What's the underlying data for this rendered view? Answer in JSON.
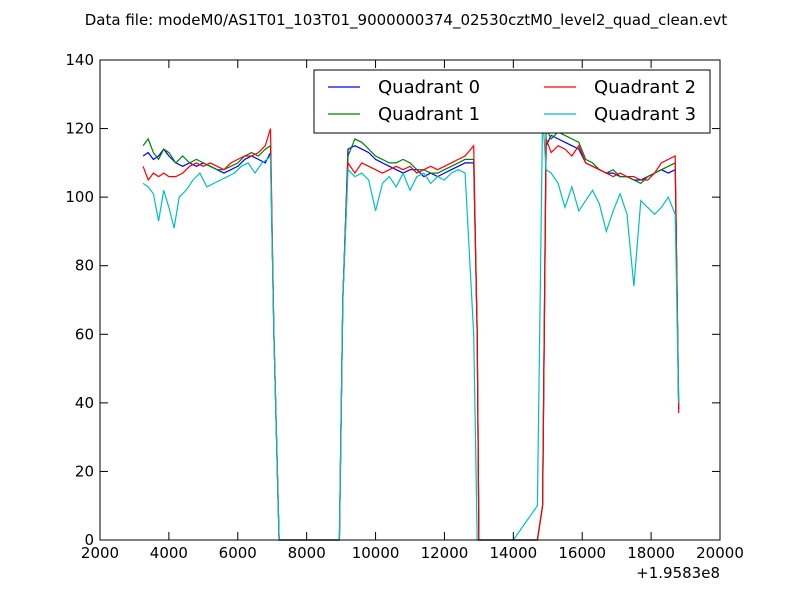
{
  "chart_data": {
    "type": "line",
    "title": "Data file: modeM0/AS1T01_103T01_9000000374_02530cztM0_level2_quad_clean.evt",
    "xlabel": "",
    "ylabel": "",
    "xlim": [
      2000,
      20000
    ],
    "ylim": [
      0,
      140
    ],
    "x_offset_label": "+1.9583e8",
    "xticks": [
      "2000",
      "4000",
      "6000",
      "8000",
      "10000",
      "12000",
      "14000",
      "16000",
      "18000",
      "20000"
    ],
    "yticks": [
      "0",
      "20",
      "40",
      "60",
      "80",
      "100",
      "120",
      "140"
    ],
    "grid": false,
    "legend_placement": "top-right",
    "series": [
      {
        "name": "Quadrant 0",
        "color": "#0000ff",
        "x": [
          3250,
          3400,
          3550,
          3700,
          3850,
          4000,
          4200,
          4400,
          4600,
          4800,
          5000,
          5200,
          5400,
          5600,
          5800,
          6000,
          6200,
          6400,
          6600,
          6800,
          6950,
          7050,
          7200,
          8000,
          8950,
          9050,
          9200,
          9400,
          9600,
          9800,
          10000,
          10200,
          10400,
          10600,
          10800,
          11000,
          11200,
          11400,
          11600,
          11800,
          12000,
          12200,
          12400,
          12600,
          12850,
          12950,
          13000,
          14000,
          14700,
          14850,
          14950,
          15100,
          15300,
          15500,
          15700,
          15900,
          16100,
          16300,
          16500,
          16700,
          16900,
          17100,
          17300,
          17500,
          17700,
          17900,
          18100,
          18300,
          18500,
          18700,
          18800
        ],
        "values": [
          112,
          113,
          111,
          112,
          114,
          112,
          110,
          109,
          110,
          109,
          110,
          109,
          108,
          107,
          108,
          109,
          111,
          112,
          111,
          110,
          113,
          60,
          0,
          0,
          0,
          70,
          114,
          115,
          114,
          113,
          111,
          110,
          109,
          108,
          107,
          108,
          108,
          106,
          107,
          106,
          107,
          108,
          109,
          110,
          110,
          60,
          0,
          0,
          0,
          10,
          115,
          118,
          117,
          116,
          115,
          114,
          110,
          109,
          108,
          107,
          107,
          106,
          106,
          105,
          105,
          106,
          107,
          108,
          107,
          108,
          38
        ]
      },
      {
        "name": "Quadrant 1",
        "color": "#008000",
        "x": [
          3250,
          3400,
          3550,
          3700,
          3850,
          4000,
          4200,
          4400,
          4600,
          4800,
          5000,
          5200,
          5400,
          5600,
          5800,
          6000,
          6200,
          6400,
          6600,
          6800,
          6950,
          7050,
          7200,
          8000,
          8950,
          9050,
          9200,
          9400,
          9600,
          9800,
          10000,
          10200,
          10400,
          10600,
          10800,
          11000,
          11200,
          11400,
          11600,
          11800,
          12000,
          12200,
          12400,
          12600,
          12850,
          12950,
          13000,
          14000,
          14700,
          14850,
          14950,
          15100,
          15300,
          15500,
          15700,
          15900,
          16100,
          16300,
          16500,
          16700,
          16900,
          17100,
          17300,
          17500,
          17700,
          17900,
          18100,
          18300,
          18500,
          18700,
          18800
        ],
        "values": [
          115,
          117,
          113,
          111,
          114,
          113,
          110,
          112,
          110,
          111,
          110,
          109,
          108,
          108,
          109,
          110,
          112,
          113,
          112,
          114,
          115,
          60,
          0,
          0,
          0,
          70,
          112,
          117,
          116,
          114,
          112,
          111,
          110,
          110,
          111,
          110,
          108,
          108,
          107,
          107,
          108,
          109,
          110,
          111,
          111,
          60,
          0,
          0,
          0,
          10,
          120,
          117,
          119,
          118,
          117,
          116,
          111,
          110,
          108,
          107,
          108,
          106,
          106,
          105,
          104,
          106,
          107,
          108,
          109,
          110,
          40
        ]
      },
      {
        "name": "Quadrant 2",
        "color": "#ff0000",
        "x": [
          3250,
          3400,
          3550,
          3700,
          3850,
          4000,
          4200,
          4400,
          4600,
          4800,
          5000,
          5200,
          5400,
          5600,
          5800,
          6000,
          6200,
          6400,
          6600,
          6800,
          6950,
          7050,
          7200,
          8000,
          8950,
          9050,
          9200,
          9400,
          9600,
          9800,
          10000,
          10200,
          10400,
          10600,
          10800,
          11000,
          11200,
          11400,
          11600,
          11800,
          12000,
          12200,
          12400,
          12600,
          12850,
          12950,
          13000,
          14000,
          14700,
          14850,
          14950,
          15100,
          15300,
          15500,
          15700,
          15900,
          16100,
          16300,
          16500,
          16700,
          16900,
          17100,
          17300,
          17500,
          17700,
          17900,
          18100,
          18300,
          18500,
          18700,
          18800
        ],
        "values": [
          109,
          105,
          107,
          106,
          107,
          106,
          106,
          107,
          109,
          110,
          109,
          110,
          109,
          108,
          110,
          111,
          112,
          112,
          113,
          115,
          120,
          60,
          0,
          0,
          0,
          70,
          110,
          107,
          110,
          109,
          108,
          107,
          108,
          109,
          108,
          109,
          107,
          108,
          109,
          108,
          109,
          110,
          111,
          112,
          115,
          60,
          0,
          0,
          0,
          10,
          117,
          113,
          115,
          114,
          112,
          115,
          110,
          109,
          108,
          107,
          106,
          107,
          106,
          106,
          105,
          105,
          107,
          110,
          111,
          112,
          37
        ]
      },
      {
        "name": "Quadrant 3",
        "color": "#00bfbf",
        "x": [
          3250,
          3400,
          3550,
          3700,
          3850,
          4000,
          4150,
          4300,
          4500,
          4700,
          4900,
          5100,
          5300,
          5500,
          5700,
          5900,
          6100,
          6300,
          6500,
          6700,
          6850,
          6950,
          7050,
          7200,
          8000,
          8950,
          9050,
          9200,
          9400,
          9600,
          9800,
          10000,
          10200,
          10400,
          10600,
          10800,
          11000,
          11200,
          11400,
          11600,
          11800,
          12000,
          12200,
          12400,
          12600,
          12850,
          12950,
          13000,
          14000,
          14700,
          14850,
          14950,
          15100,
          15300,
          15500,
          15700,
          15900,
          16100,
          16300,
          16500,
          16700,
          16900,
          17100,
          17300,
          17500,
          17700,
          17900,
          18100,
          18300,
          18500,
          18700,
          18800
        ],
        "values": [
          104,
          103,
          101,
          93,
          102,
          97,
          91,
          100,
          102,
          105,
          107,
          103,
          104,
          105,
          106,
          107,
          109,
          110,
          107,
          110,
          111,
          112,
          60,
          0,
          0,
          0,
          70,
          108,
          106,
          107,
          105,
          96,
          104,
          106,
          103,
          107,
          102,
          106,
          107,
          104,
          106,
          105,
          107,
          108,
          107,
          60,
          0,
          0,
          0,
          10,
          124,
          108,
          107,
          104,
          97,
          103,
          96,
          99,
          102,
          98,
          90,
          96,
          101,
          95,
          74,
          99,
          97,
          95,
          97,
          100,
          95,
          40
        ]
      }
    ]
  }
}
